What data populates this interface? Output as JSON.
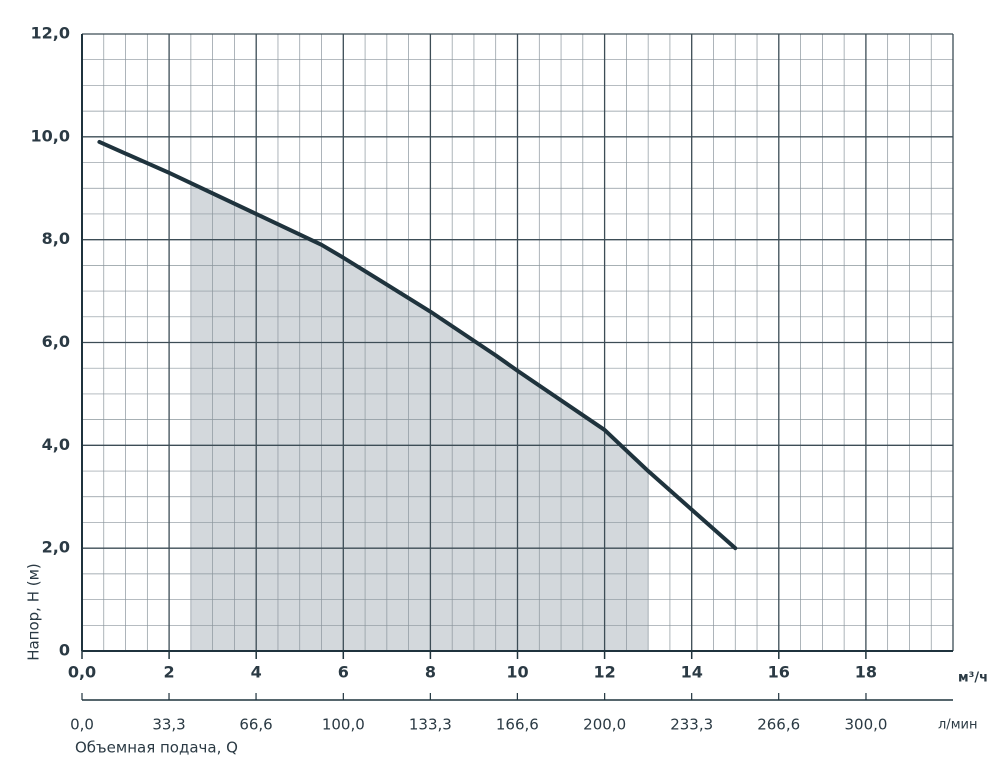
{
  "chart_data": {
    "type": "line",
    "xlabel": "Объемная подача, Q",
    "ylabel": "Напор, H (м)",
    "xunit": "м³/ч",
    "x2unit": "л/мин",
    "xlim": [
      0,
      20
    ],
    "ylim": [
      0,
      12
    ],
    "xticks": [
      {
        "value": 0,
        "label": "0,0"
      },
      2,
      4,
      6,
      8,
      10,
      12,
      14,
      16,
      18
    ],
    "yticks": [
      {
        "value": 0,
        "label": "0"
      },
      {
        "value": 2,
        "label": "2,0"
      },
      {
        "value": 4,
        "label": "4,0"
      },
      {
        "value": 6,
        "label": "6,0"
      },
      {
        "value": 8,
        "label": "8,0"
      },
      {
        "value": 10,
        "label": "10,0"
      },
      {
        "value": 12,
        "label": "12,0"
      }
    ],
    "x2lim": [
      0,
      333.3
    ],
    "x2ticks": [
      {
        "value": 0,
        "label": "0,0"
      },
      {
        "value": 33.3,
        "label": "33,3"
      },
      {
        "value": 66.6,
        "label": "66,6"
      },
      {
        "value": 100,
        "label": "100,0"
      },
      {
        "value": 133.3,
        "label": "133,3"
      },
      {
        "value": 166.6,
        "label": "166,6"
      },
      {
        "value": 200,
        "label": "200,0"
      },
      {
        "value": 233.3,
        "label": "233,3"
      },
      {
        "value": 266.6,
        "label": "266,6"
      },
      {
        "value": 300,
        "label": "300,0"
      }
    ],
    "xminor": 0.5,
    "yminor": 0.5,
    "grid": true,
    "shaded_range": [
      2.5,
      13
    ],
    "shade_color": "#d3d8dc",
    "series": [
      {
        "color": "#1f333d",
        "x": [
          0.4,
          2,
          4,
          5.5,
          6,
          8,
          9.5,
          10,
          12,
          13,
          14,
          15
        ],
        "values": [
          9.9,
          9.3,
          8.5,
          7.9,
          7.65,
          6.6,
          5.75,
          5.45,
          4.3,
          3.5,
          2.75,
          2.0
        ]
      }
    ]
  }
}
